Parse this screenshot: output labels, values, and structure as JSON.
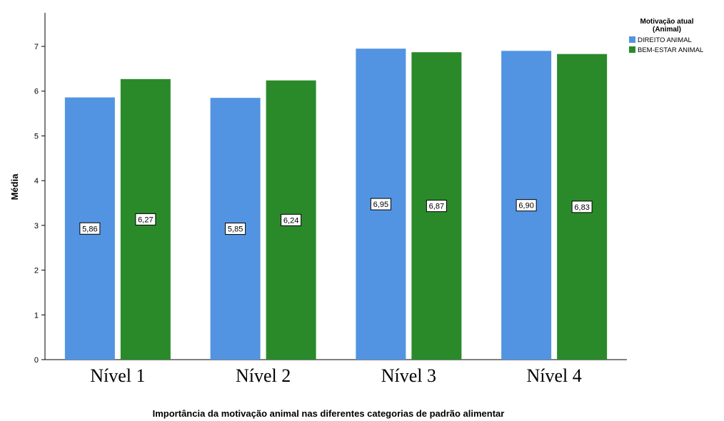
{
  "chart_data": {
    "type": "bar",
    "title": "",
    "xlabel": "Importância da motivação animal nas diferentes categorias de padrão alimentar",
    "ylabel": "Média",
    "categories": [
      "Nível 1",
      "Nível 2",
      "Nível 3",
      "Nível 4"
    ],
    "series": [
      {
        "name": "DIREITO ANIMAL",
        "color": "#5294e2",
        "values": [
          5.86,
          5.85,
          6.95,
          6.9
        ],
        "labels": [
          "5,86",
          "5,85",
          "6,95",
          "6,90"
        ]
      },
      {
        "name": "BEM-ESTAR ANIMAL",
        "color": "#2a8a2a",
        "values": [
          6.27,
          6.24,
          6.87,
          6.83
        ],
        "labels": [
          "6,27",
          "6,24",
          "6,87",
          "6,83"
        ]
      }
    ],
    "ylim": [
      0,
      7.75
    ],
    "yticks": [
      "0",
      "1",
      "2",
      "3",
      "4",
      "5",
      "6",
      "7"
    ],
    "grid": false,
    "legend": {
      "title": "Motivação atual (Animal)",
      "title_lines": [
        "Motivação atual",
        "(Animal)"
      ],
      "position": "top-right"
    }
  }
}
